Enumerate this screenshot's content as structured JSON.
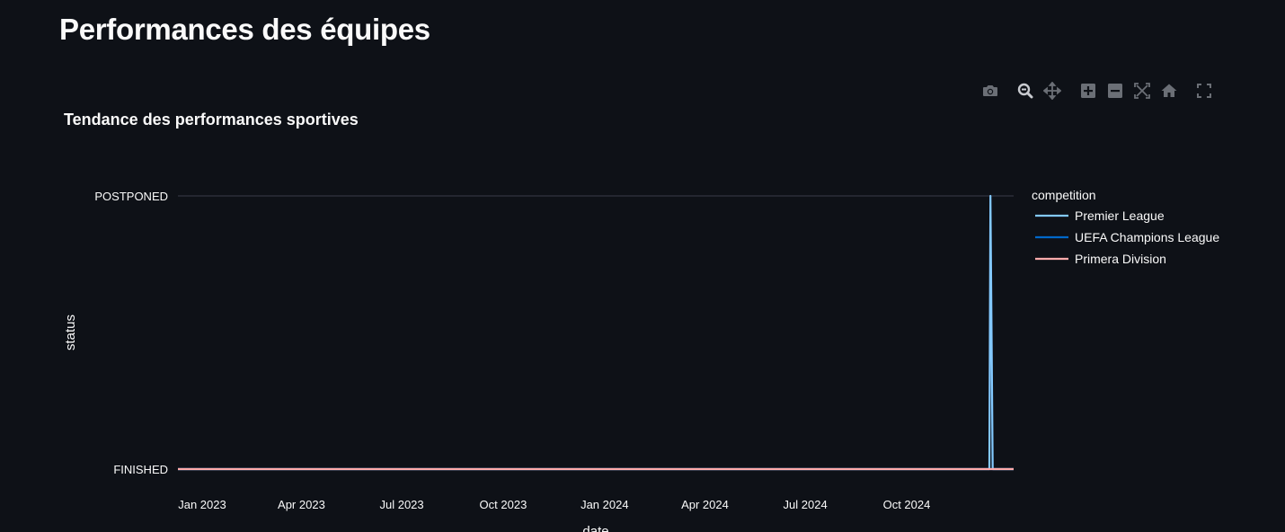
{
  "page": {
    "title": "Performances des équipes"
  },
  "modebar": [
    {
      "name": "camera-icon",
      "label": "Download plot as a png"
    },
    {
      "name": "zoom-icon",
      "label": "Zoom"
    },
    {
      "name": "pan-icon",
      "label": "Pan"
    },
    {
      "name": "zoom-in-icon",
      "label": "Zoom in"
    },
    {
      "name": "zoom-out-icon",
      "label": "Zoom out"
    },
    {
      "name": "autoscale-icon",
      "label": "Autoscale"
    },
    {
      "name": "home-icon",
      "label": "Reset axes"
    },
    {
      "name": "fullscreen-icon",
      "label": "View fullscreen"
    }
  ],
  "chart_data": {
    "type": "line",
    "title": "Tendance des performances sportives",
    "xlabel": "date",
    "ylabel": "status",
    "y_categories": [
      "FINISHED",
      "POSTPONED"
    ],
    "x_ticks": [
      "Jan 2023",
      "Apr 2023",
      "Jul 2023",
      "Oct 2023",
      "Jan 2024",
      "Apr 2024",
      "Jul 2024",
      "Oct 2024"
    ],
    "x_range": [
      "2022-12-10",
      "2025-01-06"
    ],
    "legend_title": "competition",
    "legend_position": "right",
    "grid": true,
    "series": [
      {
        "name": "Premier League",
        "color": "#83c9ff",
        "points": [
          {
            "x": "2022-12-10",
            "y": "FINISHED"
          },
          {
            "x": "2024-12-15",
            "y": "FINISHED"
          },
          {
            "x": "2024-12-16",
            "y": "POSTPONED"
          },
          {
            "x": "2024-12-18",
            "y": "FINISHED"
          },
          {
            "x": "2025-01-06",
            "y": "FINISHED"
          }
        ]
      },
      {
        "name": "UEFA Champions League",
        "color": "#0068c9",
        "points": [
          {
            "x": "2022-12-10",
            "y": "FINISHED"
          },
          {
            "x": "2025-01-06",
            "y": "FINISHED"
          }
        ]
      },
      {
        "name": "Primera Division",
        "color": "#ffabab",
        "points": [
          {
            "x": "2022-12-10",
            "y": "FINISHED"
          },
          {
            "x": "2025-01-06",
            "y": "FINISHED"
          }
        ]
      }
    ]
  }
}
